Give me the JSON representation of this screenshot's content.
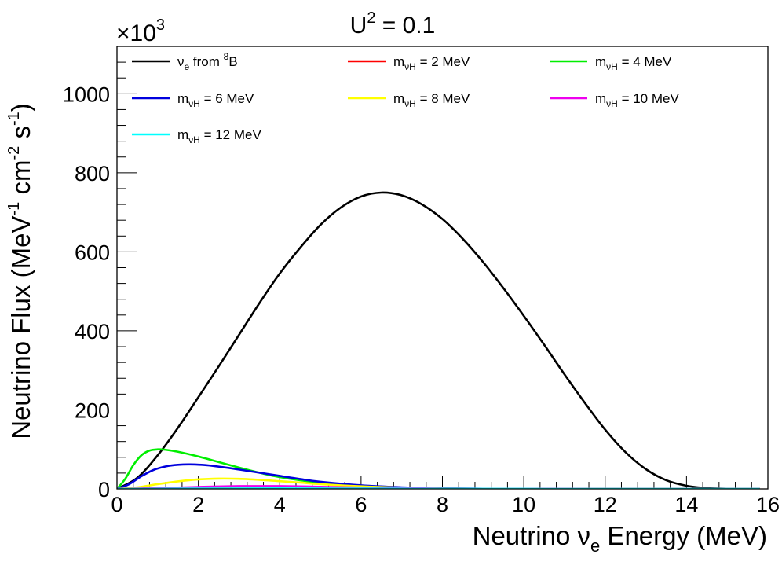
{
  "chart_data": {
    "type": "line",
    "title": "U² = 0.1",
    "title_parts": {
      "base": "U",
      "sup": "2",
      "rest": " = 0.1"
    },
    "xlabel": "Neutrino νe Energy (MeV)",
    "xlabel_parts": {
      "pre": "Neutrino ν",
      "sub": "e",
      "post": " Energy (MeV)"
    },
    "ylabel": "Neutrino Flux (MeV⁻¹ cm⁻² s⁻¹)",
    "ylabel_parts": {
      "a": "Neutrino Flux (MeV",
      "s1": "-1",
      "b": " cm",
      "s2": "-2",
      "c": " s",
      "s3": "-1",
      "d": ")"
    },
    "y_multiplier": {
      "symbol": "×10",
      "exp": "3"
    },
    "xlim": [
      0,
      16
    ],
    "ylim": [
      0,
      1120
    ],
    "xticks": [
      0,
      2,
      4,
      6,
      8,
      10,
      12,
      14,
      16
    ],
    "yticks": [
      0,
      200,
      400,
      600,
      800,
      1000
    ],
    "grid": false,
    "legend_position": "top",
    "series": [
      {
        "name": "νe from 8B",
        "label_parts": {
          "pre": "ν",
          "sub": "e",
          "mid": " from ",
          "sup": "8",
          "post": "B"
        },
        "color": "#000000",
        "x": [
          0,
          0.5,
          1,
          1.5,
          2,
          2.5,
          3,
          3.5,
          4,
          4.5,
          5,
          5.5,
          6,
          6.5,
          7,
          7.5,
          8,
          8.5,
          9,
          9.5,
          10,
          10.5,
          11,
          11.5,
          12,
          12.5,
          13,
          13.5,
          14,
          14.5,
          15,
          15.5,
          15.8
        ],
        "y": [
          0,
          28,
          85,
          155,
          232,
          310,
          390,
          470,
          545,
          610,
          668,
          712,
          740,
          750,
          743,
          720,
          683,
          633,
          574,
          508,
          438,
          365,
          290,
          218,
          150,
          93,
          50,
          22,
          8,
          2,
          0.5,
          0,
          0
        ]
      },
      {
        "name": "mνH = 2 MeV",
        "label_parts": {
          "pre": "m",
          "sub": "νH",
          "post": " = 2 MeV"
        },
        "color": "#ff0000",
        "x": [
          0,
          0.5,
          1,
          1.5,
          2,
          3,
          4,
          5,
          6,
          8,
          10,
          12,
          14,
          15.8
        ],
        "y": [
          0,
          1.5,
          2,
          1.8,
          1.5,
          1,
          0.6,
          0.3,
          0.1,
          0,
          0,
          0,
          0,
          0
        ]
      },
      {
        "name": "mνH = 4 MeV",
        "label_parts": {
          "pre": "m",
          "sub": "νH",
          "post": " = 4 MeV"
        },
        "color": "#00ee00",
        "x": [
          0,
          0.2,
          0.4,
          0.6,
          0.8,
          1,
          1.2,
          1.5,
          2,
          2.5,
          3,
          3.5,
          4,
          5,
          6,
          7,
          8,
          10,
          12,
          15.8
        ],
        "y": [
          0,
          25,
          60,
          85,
          97,
          100,
          99,
          94,
          82,
          68,
          54,
          41,
          30,
          15,
          6,
          2,
          0.5,
          0,
          0,
          0
        ]
      },
      {
        "name": "mνH = 6 MeV",
        "label_parts": {
          "pre": "m",
          "sub": "νH",
          "post": " = 6 MeV"
        },
        "color": "#0000dd",
        "x": [
          0,
          0.3,
          0.6,
          0.9,
          1.2,
          1.5,
          1.8,
          2.2,
          2.6,
          3,
          3.5,
          4,
          4.5,
          5,
          6,
          7,
          8,
          9,
          10,
          12,
          15.8
        ],
        "y": [
          0,
          12,
          32,
          48,
          57,
          61,
          62,
          60,
          55,
          49,
          41,
          33,
          25,
          18,
          9,
          4,
          1.5,
          0.5,
          0,
          0,
          0
        ]
      },
      {
        "name": "mνH = 8 MeV",
        "label_parts": {
          "pre": "m",
          "sub": "νH",
          "post": " = 8 MeV"
        },
        "color": "#ffff00",
        "x": [
          0,
          0.5,
          1,
          1.5,
          2,
          2.5,
          3,
          3.5,
          4,
          4.5,
          5,
          6,
          7,
          8,
          9,
          10,
          12,
          15.8
        ],
        "y": [
          0,
          4,
          12,
          19,
          24,
          26,
          25.5,
          23,
          19.5,
          16,
          12,
          6.5,
          3,
          1,
          0.3,
          0,
          0,
          0
        ]
      },
      {
        "name": "mνH = 10 MeV",
        "label_parts": {
          "pre": "m",
          "sub": "νH",
          "post": " = 10 MeV"
        },
        "color": "#ee00ee",
        "x": [
          0,
          1,
          2,
          3,
          3.5,
          4,
          5,
          6,
          7,
          8,
          10,
          12,
          15.8
        ],
        "y": [
          0,
          2,
          5,
          7,
          7.2,
          7,
          5.5,
          3.5,
          2,
          0.8,
          0.1,
          0,
          0
        ]
      },
      {
        "name": "mνH = 12 MeV",
        "label_parts": {
          "pre": "m",
          "sub": "νH",
          "post": " = 12 MeV"
        },
        "color": "#00ffff",
        "x": [
          0,
          1,
          2,
          3,
          4,
          5,
          6,
          8,
          10,
          12,
          15.8
        ],
        "y": [
          0,
          0.4,
          0.9,
          1.2,
          1.3,
          1.1,
          0.8,
          0.3,
          0.05,
          0,
          0
        ]
      }
    ]
  }
}
